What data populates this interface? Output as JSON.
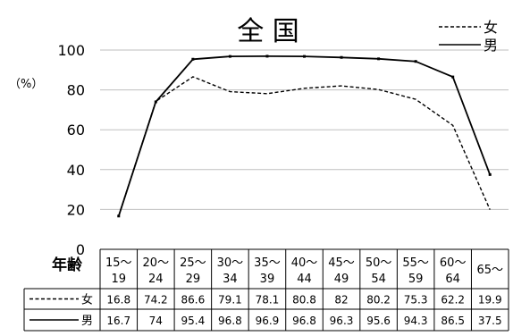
{
  "chart_data": {
    "type": "line",
    "title": "全 国",
    "ylabel": "（%）",
    "xlabel": "年齢",
    "ylim": [
      0,
      100
    ],
    "yticks": [
      0,
      20,
      40,
      60,
      80,
      100
    ],
    "grid": "horizontal",
    "legend_placement": "top-right",
    "categories": [
      [
        "15～",
        "19"
      ],
      [
        "20～",
        "24"
      ],
      [
        "25～",
        "29"
      ],
      [
        "30～",
        "34"
      ],
      [
        "35～",
        "39"
      ],
      [
        "40～",
        "44"
      ],
      [
        "45～",
        "49"
      ],
      [
        "50～",
        "54"
      ],
      [
        "55～",
        "59"
      ],
      [
        "60～",
        "64"
      ],
      [
        "65～",
        ""
      ]
    ],
    "series": [
      {
        "name": "女",
        "style": "dashed",
        "values": [
          16.8,
          74.2,
          86.6,
          79.1,
          78.1,
          80.8,
          82,
          80.2,
          75.3,
          62.2,
          19.9
        ]
      },
      {
        "name": "男",
        "style": "solid",
        "values": [
          16.7,
          74,
          95.4,
          96.8,
          96.9,
          96.8,
          96.3,
          95.6,
          94.3,
          86.5,
          37.5
        ]
      }
    ],
    "colors": {
      "line": "#000000",
      "grid": "#bfbfbf",
      "border": "#000000"
    }
  }
}
